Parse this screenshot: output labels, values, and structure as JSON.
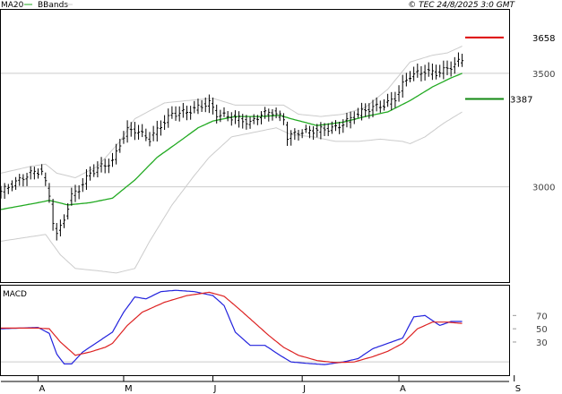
{
  "header": {
    "legend_ma": "MA20",
    "legend_bbands": "BBands",
    "source": "© TEC 24/8/2025 3:0 GMT"
  },
  "colors": {
    "ma": "#22aa22",
    "bbands": "#cccccc",
    "price": "#000000",
    "macd": "#2222dd",
    "signal": "#dd2222",
    "resistance": "#dd0000",
    "support": "#118811",
    "grid": "#cccccc"
  },
  "chart_data": [
    {
      "type": "line",
      "name": "price-panel",
      "ylim": [
        2580,
        3780
      ],
      "yticks": [
        {
          "value": 3500,
          "label": "3500"
        },
        {
          "value": 3000,
          "label": "3000"
        }
      ],
      "x_range": [
        0,
        125
      ],
      "xticks": [
        {
          "x": 10,
          "label": "A"
        },
        {
          "x": 33,
          "label": "M"
        },
        {
          "x": 57,
          "label": "J"
        },
        {
          "x": 81,
          "label": "J"
        },
        {
          "x": 107,
          "label": "A"
        },
        {
          "x": 138,
          "label": "S"
        }
      ],
      "levels": [
        {
          "name": "resistance",
          "value": 3658,
          "label": "3658",
          "color": "#dd0000"
        },
        {
          "name": "support",
          "value": 3387,
          "label": "3387",
          "color": "#118811"
        }
      ],
      "anchors": {
        "close": [
          [
            0,
            2980
          ],
          [
            4,
            3020
          ],
          [
            8,
            3060
          ],
          [
            11,
            3070
          ],
          [
            13,
            2960
          ],
          [
            14,
            2850
          ],
          [
            15,
            2790
          ],
          [
            16,
            2820
          ],
          [
            17,
            2860
          ],
          [
            19,
            2960
          ],
          [
            21,
            2990
          ],
          [
            24,
            3060
          ],
          [
            27,
            3090
          ],
          [
            30,
            3110
          ],
          [
            32,
            3190
          ],
          [
            34,
            3250
          ],
          [
            36,
            3250
          ],
          [
            40,
            3210
          ],
          [
            43,
            3270
          ],
          [
            46,
            3320
          ],
          [
            50,
            3330
          ],
          [
            53,
            3350
          ],
          [
            56,
            3370
          ],
          [
            58,
            3320
          ],
          [
            61,
            3310
          ],
          [
            64,
            3300
          ],
          [
            67,
            3280
          ],
          [
            70,
            3320
          ],
          [
            73,
            3330
          ],
          [
            76,
            3300
          ],
          [
            77,
            3220
          ],
          [
            80,
            3240
          ],
          [
            85,
            3250
          ],
          [
            90,
            3260
          ],
          [
            94,
            3300
          ],
          [
            97,
            3330
          ],
          [
            100,
            3350
          ],
          [
            103,
            3360
          ],
          [
            106,
            3390
          ],
          [
            108,
            3450
          ],
          [
            110,
            3490
          ],
          [
            114,
            3510
          ],
          [
            117,
            3500
          ],
          [
            120,
            3520
          ],
          [
            124,
            3560
          ]
        ],
        "ma20": [
          [
            0,
            2900
          ],
          [
            10,
            2930
          ],
          [
            13,
            2940
          ],
          [
            18,
            2920
          ],
          [
            24,
            2930
          ],
          [
            30,
            2950
          ],
          [
            36,
            3030
          ],
          [
            42,
            3130
          ],
          [
            48,
            3200
          ],
          [
            53,
            3260
          ],
          [
            57,
            3290
          ],
          [
            63,
            3310
          ],
          [
            70,
            3310
          ],
          [
            75,
            3315
          ],
          [
            78,
            3300
          ],
          [
            85,
            3270
          ],
          [
            92,
            3285
          ],
          [
            98,
            3310
          ],
          [
            104,
            3330
          ],
          [
            110,
            3380
          ],
          [
            116,
            3440
          ],
          [
            121,
            3480
          ],
          [
            124,
            3500
          ]
        ],
        "upper": [
          [
            0,
            3060
          ],
          [
            8,
            3090
          ],
          [
            12,
            3100
          ],
          [
            15,
            3060
          ],
          [
            20,
            3040
          ],
          [
            26,
            3090
          ],
          [
            32,
            3200
          ],
          [
            36,
            3300
          ],
          [
            44,
            3370
          ],
          [
            50,
            3380
          ],
          [
            57,
            3390
          ],
          [
            63,
            3360
          ],
          [
            70,
            3360
          ],
          [
            76,
            3360
          ],
          [
            80,
            3320
          ],
          [
            86,
            3310
          ],
          [
            92,
            3320
          ],
          [
            98,
            3350
          ],
          [
            104,
            3430
          ],
          [
            110,
            3550
          ],
          [
            116,
            3580
          ],
          [
            120,
            3590
          ],
          [
            124,
            3620
          ]
        ],
        "lower": [
          [
            0,
            2760
          ],
          [
            8,
            2780
          ],
          [
            12,
            2790
          ],
          [
            16,
            2700
          ],
          [
            20,
            2640
          ],
          [
            26,
            2630
          ],
          [
            31,
            2620
          ],
          [
            36,
            2640
          ],
          [
            40,
            2760
          ],
          [
            46,
            2920
          ],
          [
            52,
            3050
          ],
          [
            56,
            3130
          ],
          [
            62,
            3220
          ],
          [
            68,
            3240
          ],
          [
            74,
            3260
          ],
          [
            78,
            3230
          ],
          [
            84,
            3220
          ],
          [
            90,
            3200
          ],
          [
            96,
            3200
          ],
          [
            102,
            3210
          ],
          [
            108,
            3200
          ],
          [
            110,
            3190
          ],
          [
            114,
            3220
          ],
          [
            119,
            3280
          ],
          [
            124,
            3330
          ]
        ]
      }
    },
    {
      "type": "line",
      "name": "macd-panel",
      "title": "MACD",
      "ylim": [
        -20,
        115
      ],
      "yticks": [
        {
          "value": 70,
          "label": "70"
        },
        {
          "value": 50,
          "label": "50"
        },
        {
          "value": 30,
          "label": "30"
        }
      ],
      "x_range": [
        0,
        125
      ],
      "series": [
        {
          "key": "macd",
          "values_at": [
            [
              0,
              50
            ],
            [
              5,
              51
            ],
            [
              10,
              52
            ],
            [
              13,
              43
            ],
            [
              15,
              12
            ],
            [
              17,
              -3
            ],
            [
              19,
              -3
            ],
            [
              22,
              15
            ],
            [
              26,
              30
            ],
            [
              30,
              45
            ],
            [
              33,
              75
            ],
            [
              36,
              98
            ],
            [
              39,
              95
            ],
            [
              43,
              106
            ],
            [
              47,
              108
            ],
            [
              52,
              106
            ],
            [
              57,
              100
            ],
            [
              60,
              85
            ],
            [
              63,
              45
            ],
            [
              67,
              25
            ],
            [
              71,
              25
            ],
            [
              75,
              10
            ],
            [
              78,
              0
            ],
            [
              82,
              -2
            ],
            [
              87,
              -4
            ],
            [
              92,
              0
            ],
            [
              96,
              5
            ],
            [
              100,
              20
            ],
            [
              104,
              28
            ],
            [
              108,
              36
            ],
            [
              111,
              68
            ],
            [
              114,
              70
            ],
            [
              118,
              55
            ],
            [
              121,
              61
            ],
            [
              124,
              61
            ]
          ]
        },
        {
          "key": "signal",
          "values_at": [
            [
              0,
              51
            ],
            [
              10,
              51
            ],
            [
              13,
              50
            ],
            [
              16,
              30
            ],
            [
              20,
              10
            ],
            [
              24,
              15
            ],
            [
              28,
              22
            ],
            [
              30,
              28
            ],
            [
              34,
              55
            ],
            [
              38,
              75
            ],
            [
              44,
              90
            ],
            [
              50,
              100
            ],
            [
              56,
              105
            ],
            [
              60,
              99
            ],
            [
              64,
              80
            ],
            [
              68,
              60
            ],
            [
              72,
              40
            ],
            [
              76,
              22
            ],
            [
              80,
              10
            ],
            [
              85,
              2
            ],
            [
              90,
              -1
            ],
            [
              95,
              0
            ],
            [
              100,
              8
            ],
            [
              104,
              16
            ],
            [
              108,
              28
            ],
            [
              112,
              50
            ],
            [
              116,
              60
            ],
            [
              120,
              60
            ],
            [
              124,
              58
            ]
          ]
        }
      ]
    }
  ]
}
